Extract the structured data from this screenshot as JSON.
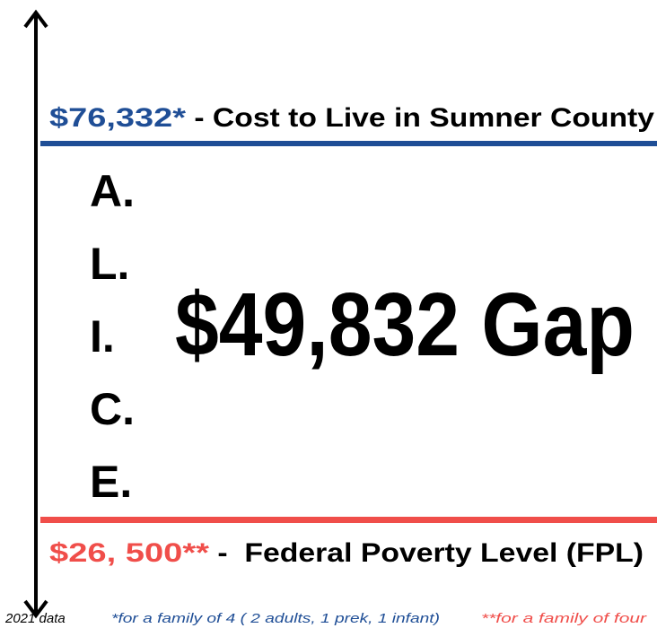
{
  "top": {
    "amount": "$76,332*",
    "label": " - Cost to Live in Sumner County"
  },
  "letters": [
    "A.",
    "L.",
    "I.",
    "C.",
    "E."
  ],
  "gap": "$49,832 Gap",
  "bottom": {
    "amount": "$26, 500**",
    "label": " -  Federal Poverty Level (FPL)"
  },
  "footer": {
    "year": "2021 data",
    "note1": "*for a family of 4 ( 2 adults, 1 prek, 1 infant)",
    "note2": "**for a family of four"
  }
}
